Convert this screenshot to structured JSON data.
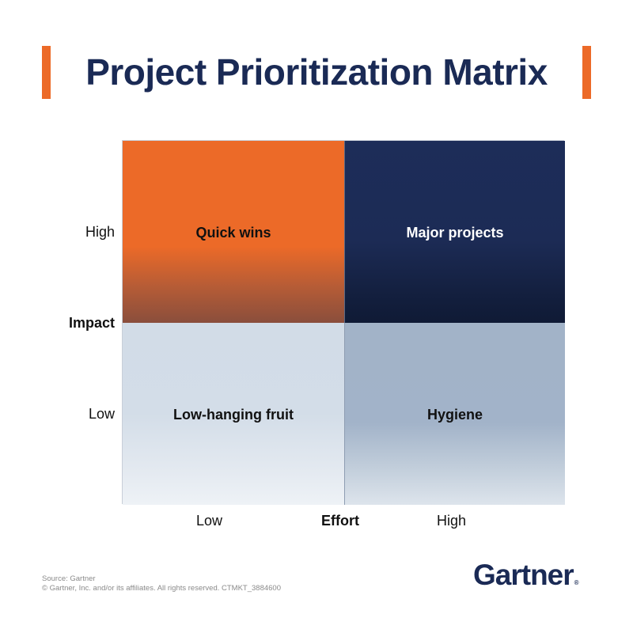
{
  "header": {
    "title": "Project Prioritization Matrix"
  },
  "colors": {
    "accent_orange": "#ec6a28",
    "navy": "#1a2a55",
    "light_blue": "#d2dce7",
    "mid_blue": "#a2b3c8"
  },
  "matrix": {
    "y_axis": {
      "title": "Impact",
      "high": "High",
      "low": "Low"
    },
    "x_axis": {
      "title": "Effort",
      "low": "Low",
      "high": "High"
    },
    "quadrants": [
      {
        "position": "top-left",
        "label": "Quick wins",
        "impact": "High",
        "effort": "Low",
        "color": "#ec6a28"
      },
      {
        "position": "top-right",
        "label": "Major projects",
        "impact": "High",
        "effort": "High",
        "color": "#1c2b55"
      },
      {
        "position": "bottom-left",
        "label": "Low-hanging fruit",
        "impact": "Low",
        "effort": "Low",
        "color": "#d2dce7"
      },
      {
        "position": "bottom-right",
        "label": "Hygiene",
        "impact": "Low",
        "effort": "High",
        "color": "#a2b3c8"
      }
    ]
  },
  "footer": {
    "source": "Source: Gartner",
    "copyright": "© Gartner, Inc. and/or its affiliates. All rights reserved. CTMKT_3884600",
    "logo_text": "Gartner",
    "logo_mark": "®"
  }
}
